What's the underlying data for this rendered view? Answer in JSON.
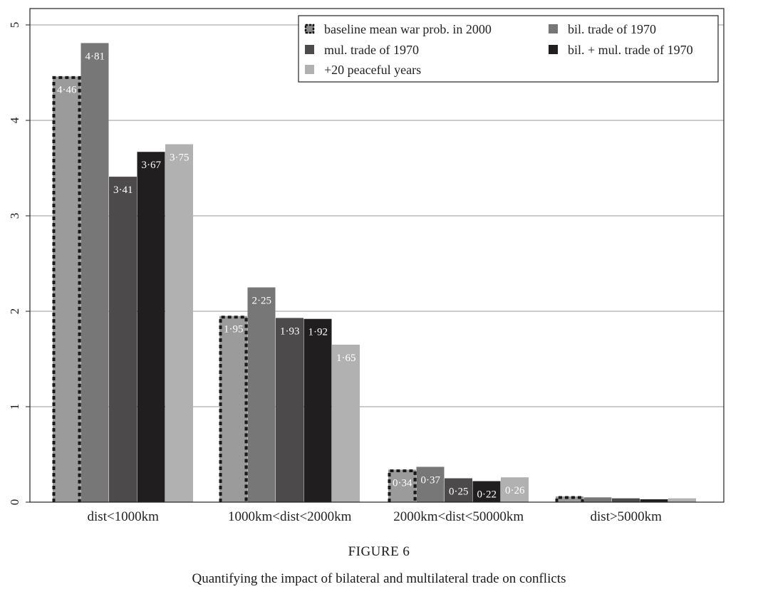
{
  "chart_data": {
    "type": "bar",
    "categories": [
      "dist<1000km",
      "1000km<dist<2000km",
      "2000km<dist<50000km",
      "dist>5000km"
    ],
    "series": [
      {
        "name": "baseline mean war prob. in 2000",
        "values": [
          4.46,
          1.95,
          0.34,
          0.06
        ],
        "labels": [
          "4·46",
          "1·95",
          "0·34",
          ""
        ],
        "color": "#9b9b9b",
        "dashed": true
      },
      {
        "name": "bil. trade of 1970",
        "values": [
          4.81,
          2.25,
          0.37,
          0.05
        ],
        "labels": [
          "4·81",
          "2·25",
          "0·37",
          ""
        ],
        "color": "#777777"
      },
      {
        "name": "mul. trade of 1970",
        "values": [
          3.41,
          1.93,
          0.25,
          0.04
        ],
        "labels": [
          "3·41",
          "1·93",
          "0·25",
          ""
        ],
        "color": "#4c4a4b"
      },
      {
        "name": "bil. + mul. trade of 1970",
        "values": [
          3.67,
          1.92,
          0.22,
          0.03
        ],
        "labels": [
          "3·67",
          "1·92",
          "0·22",
          ""
        ],
        "color": "#201e1f"
      },
      {
        "name": "+20 peaceful years",
        "values": [
          3.75,
          1.65,
          0.26,
          0.04
        ],
        "labels": [
          "3·75",
          "1·65",
          "0·26",
          ""
        ],
        "color": "#b1b1b1"
      }
    ],
    "yticks": [
      0,
      1,
      2,
      3,
      4,
      5
    ],
    "ylim": [
      0,
      5.2
    ],
    "grid": true,
    "legend_position": "top-right"
  },
  "figure": {
    "label": "FIGURE 6",
    "caption": "Quantifying the impact of bilateral and multilateral trade on conflicts"
  }
}
